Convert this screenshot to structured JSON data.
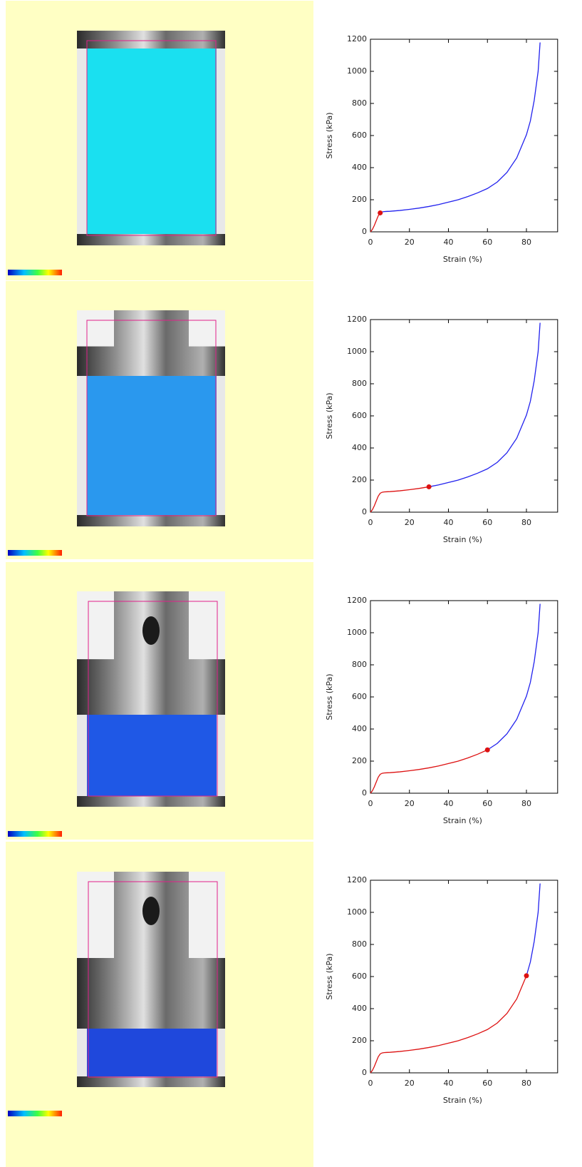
{
  "chart_data": [
    {
      "type": "line",
      "x_label": "Strain (%)",
      "y_label": "Stress (kPa)",
      "x": [
        0,
        1,
        2,
        3,
        4,
        5,
        6,
        7,
        8,
        10,
        15,
        20,
        25,
        30,
        35,
        40,
        45,
        50,
        55,
        60,
        65,
        70,
        75,
        80,
        82,
        84,
        86,
        87
      ],
      "series": [
        {
          "color": "#dd1111",
          "values": [
            0,
            15,
            40,
            70,
            100,
            118,
            null,
            null,
            null,
            null,
            null,
            null,
            null,
            null,
            null,
            null,
            null,
            null,
            null,
            null,
            null,
            null,
            null,
            null,
            null,
            null,
            null,
            null
          ]
        },
        {
          "color": "#2222ee",
          "values": [
            null,
            null,
            null,
            null,
            null,
            118,
            124,
            126,
            127,
            128,
            133,
            140,
            148,
            158,
            170,
            185,
            200,
            220,
            243,
            270,
            310,
            370,
            460,
            605,
            690,
            820,
            1000,
            1180
          ]
        }
      ],
      "xlim": [
        0,
        96
      ],
      "ylim": [
        0,
        1200
      ],
      "xticks": [
        0,
        20,
        40,
        60,
        80
      ],
      "yticks": [
        0,
        200,
        400,
        600,
        800,
        1000,
        1200
      ]
    },
    {
      "type": "line",
      "x_label": "Strain (%)",
      "y_label": "Stress (kPa)",
      "x": [
        0,
        1,
        2,
        3,
        4,
        5,
        6,
        7,
        8,
        10,
        15,
        20,
        25,
        30,
        35,
        40,
        45,
        50,
        55,
        60,
        65,
        70,
        75,
        80,
        82,
        84,
        86,
        87
      ],
      "series": [
        {
          "color": "#dd1111",
          "values": [
            0,
            15,
            40,
            70,
            100,
            118,
            124,
            126,
            127,
            128,
            133,
            140,
            148,
            158,
            null,
            null,
            null,
            null,
            null,
            null,
            null,
            null,
            null,
            null,
            null,
            null,
            null,
            null
          ]
        },
        {
          "color": "#2222ee",
          "values": [
            null,
            null,
            null,
            null,
            null,
            null,
            null,
            null,
            null,
            null,
            null,
            null,
            null,
            158,
            170,
            185,
            200,
            220,
            243,
            270,
            310,
            370,
            460,
            605,
            690,
            820,
            1000,
            1180
          ]
        }
      ],
      "xlim": [
        0,
        96
      ],
      "ylim": [
        0,
        1200
      ],
      "xticks": [
        0,
        20,
        40,
        60,
        80
      ],
      "yticks": [
        0,
        200,
        400,
        600,
        800,
        1000,
        1200
      ]
    },
    {
      "type": "line",
      "x_label": "Strain (%)",
      "y_label": "Stress (kPa)",
      "x": [
        0,
        1,
        2,
        3,
        4,
        5,
        6,
        7,
        8,
        10,
        15,
        20,
        25,
        30,
        35,
        40,
        45,
        50,
        55,
        60,
        65,
        70,
        75,
        80,
        82,
        84,
        86,
        87
      ],
      "series": [
        {
          "color": "#dd1111",
          "values": [
            0,
            15,
            40,
            70,
            100,
            118,
            124,
            126,
            127,
            128,
            133,
            140,
            148,
            158,
            170,
            185,
            200,
            220,
            243,
            270,
            null,
            null,
            null,
            null,
            null,
            null,
            null,
            null
          ]
        },
        {
          "color": "#2222ee",
          "values": [
            null,
            null,
            null,
            null,
            null,
            null,
            null,
            null,
            null,
            null,
            null,
            null,
            null,
            null,
            null,
            null,
            null,
            null,
            null,
            270,
            310,
            370,
            460,
            605,
            690,
            820,
            1000,
            1180
          ]
        }
      ],
      "xlim": [
        0,
        96
      ],
      "ylim": [
        0,
        1200
      ],
      "xticks": [
        0,
        20,
        40,
        60,
        80
      ],
      "yticks": [
        0,
        200,
        400,
        600,
        800,
        1000,
        1200
      ]
    },
    {
      "type": "line",
      "x_label": "Strain (%)",
      "y_label": "Stress (kPa)",
      "x": [
        0,
        1,
        2,
        3,
        4,
        5,
        6,
        7,
        8,
        10,
        15,
        20,
        25,
        30,
        35,
        40,
        45,
        50,
        55,
        60,
        65,
        70,
        75,
        80,
        82,
        84,
        86,
        87
      ],
      "series": [
        {
          "color": "#dd1111",
          "values": [
            0,
            15,
            40,
            70,
            100,
            118,
            124,
            126,
            127,
            128,
            133,
            140,
            148,
            158,
            170,
            185,
            200,
            220,
            243,
            270,
            310,
            370,
            460,
            605,
            null,
            null,
            null,
            null
          ]
        },
        {
          "color": "#2222ee",
          "values": [
            null,
            null,
            null,
            null,
            null,
            null,
            null,
            null,
            null,
            null,
            null,
            null,
            null,
            null,
            null,
            null,
            null,
            null,
            null,
            null,
            null,
            null,
            null,
            605,
            690,
            820,
            1000,
            1180
          ]
        }
      ],
      "xlim": [
        0,
        96
      ],
      "ylim": [
        0,
        1200
      ],
      "xticks": [
        0,
        20,
        40,
        60,
        80
      ],
      "yticks": [
        0,
        200,
        400,
        600,
        800,
        1000,
        1200
      ]
    }
  ]
}
